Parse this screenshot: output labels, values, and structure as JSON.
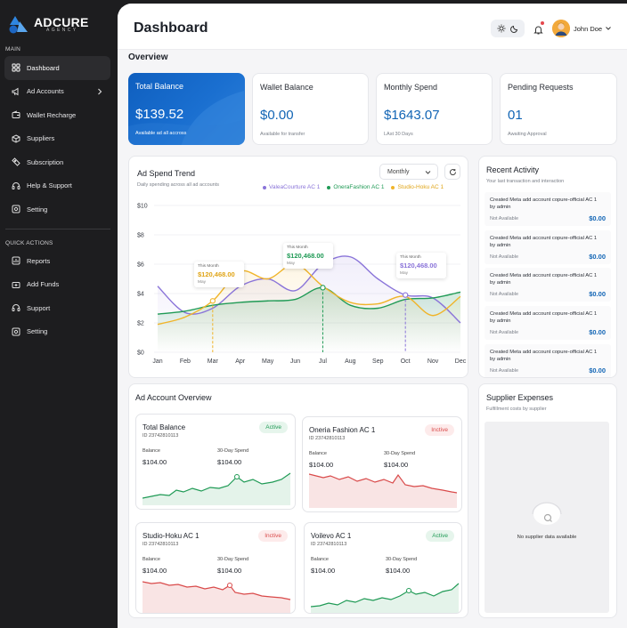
{
  "brand": {
    "name": "ADCURE",
    "tagline": "AGENCY"
  },
  "sidebar": {
    "main_label": "MAIN",
    "items": [
      {
        "label": "Dashboard",
        "icon": "grid-icon",
        "active": true
      },
      {
        "label": "Ad Accounts",
        "icon": "megaphone-icon",
        "has_chevron": true
      },
      {
        "label": "Wallet Recharge",
        "icon": "wallet-icon"
      },
      {
        "label": "Suppliers",
        "icon": "box-icon"
      },
      {
        "label": "Subscription",
        "icon": "ticket-icon"
      },
      {
        "label": "Help & Support",
        "icon": "headset-icon"
      },
      {
        "label": "Setting",
        "icon": "settings-icon"
      }
    ],
    "quick_label": "QUICK ACTIONS",
    "quick_items": [
      {
        "label": "Reports",
        "icon": "report-icon"
      },
      {
        "label": "Add Funds",
        "icon": "add-funds-icon"
      },
      {
        "label": "Support",
        "icon": "headset-icon"
      },
      {
        "label": "Setting",
        "icon": "settings-icon"
      }
    ]
  },
  "header": {
    "title": "Dashboard",
    "user_name": "John Doe"
  },
  "overview": {
    "title": "Overview",
    "cards": [
      {
        "label": "Total Balance",
        "value": "$139.52",
        "sub": "Available ad all accross",
        "highlight": true
      },
      {
        "label": "Wallet Balance",
        "value": "$0.00",
        "sub": "Available for transfer"
      },
      {
        "label": "Monthly Spend",
        "value": "$1643.07",
        "sub": "LAst 30 Days"
      },
      {
        "label": "Pending Requests",
        "value": "01",
        "sub": "Awaiting Approval"
      }
    ]
  },
  "spend_trend": {
    "title": "Ad Spend Trend",
    "subtitle": "Daily spending across all ad accounts",
    "period": "Monthly",
    "legend": [
      {
        "name": "ValeaCourture AC 1",
        "color": "#8a74d9"
      },
      {
        "name": "OneraFashion AC 1",
        "color": "#1f9a55"
      },
      {
        "name": "Studio-Hoku AC 1",
        "color": "#f0b429"
      }
    ],
    "tooltips": [
      {
        "label": "This Month",
        "value": "$120,468.00",
        "month": "May",
        "color": "#f0b429"
      },
      {
        "label": "This Month",
        "value": "$120,468.00",
        "month": "May",
        "color": "#1f9a55"
      },
      {
        "label": "This Month",
        "value": "$120,468.00",
        "month": "May",
        "color": "#8a74d9"
      }
    ]
  },
  "chart_data": {
    "type": "line",
    "title": "Ad Spend Trend",
    "x": [
      "Jan",
      "Feb",
      "Mar",
      "Apr",
      "May",
      "Jun",
      "Jul",
      "Aug",
      "Sep",
      "Oct",
      "Nov",
      "Dec"
    ],
    "y_ticks": [
      "$0",
      "$2",
      "$4",
      "$6",
      "$8",
      "$10"
    ],
    "ylim": [
      0,
      10
    ],
    "series": [
      {
        "name": "ValeaCourture AC 1",
        "color": "#8a74d9",
        "values": [
          4.5,
          2.7,
          3.0,
          4.5,
          5.0,
          4.2,
          6.0,
          6.5,
          5.0,
          3.9,
          3.7,
          2.0
        ]
      },
      {
        "name": "OneraFashion AC 1",
        "color": "#1f9a55",
        "values": [
          2.6,
          2.8,
          3.2,
          3.4,
          3.5,
          3.6,
          4.4,
          3.2,
          3.0,
          3.6,
          3.7,
          4.1
        ]
      },
      {
        "name": "Studio-Hoku AC 1",
        "color": "#f0b429",
        "values": [
          1.9,
          2.4,
          3.5,
          5.5,
          5.0,
          6.0,
          4.5,
          3.4,
          3.3,
          3.8,
          2.5,
          3.8
        ]
      }
    ],
    "grid": true
  },
  "recent_activity": {
    "title": "Recent Activity",
    "subtitle": "Your last transaction and interaction",
    "items": [
      {
        "title": "Created Meta add account copure-official AC 1 by admin",
        "status": "Not Available",
        "amount": "$0.00"
      },
      {
        "title": "Created Meta add account copure-official AC 1 by admin",
        "status": "Not Available",
        "amount": "$0.00"
      },
      {
        "title": "Created Meta add account copure-official AC 1 by admin",
        "status": "Not Available",
        "amount": "$0.00"
      },
      {
        "title": "Created Meta add account copure-official AC 1 by admin",
        "status": "Not Available",
        "amount": "$0.00"
      },
      {
        "title": "Created Meta add account copure-official AC 1 by admin",
        "status": "Not Available",
        "amount": "$0.00"
      }
    ]
  },
  "ad_accounts": {
    "title": "Ad Account Overview",
    "balance_label": "Balance",
    "spend_label": "30-Day Spend",
    "items": [
      {
        "name": "Total Balance",
        "id": "ID 23742810113",
        "status": "Active",
        "balance": "$104.00",
        "spend": "$104.00",
        "trend_color": "#1f9a55"
      },
      {
        "name": "Oneria Fashion AC 1",
        "id": "ID 23742810113",
        "status": "Inctive",
        "balance": "$104.00",
        "spend": "$104.00",
        "trend_color": "#d94a4a"
      },
      {
        "name": "Studio-Hoku AC 1",
        "id": "ID 23742810113",
        "status": "Inctive",
        "balance": "$104.00",
        "spend": "$104.00",
        "trend_color": "#d94a4a"
      },
      {
        "name": "Voilevo AC 1",
        "id": "ID 23742810113",
        "status": "Active",
        "balance": "$104.00",
        "spend": "$104.00",
        "trend_color": "#1f9a55"
      }
    ]
  },
  "supplier_expenses": {
    "title": "Supplier Expenses",
    "subtitle": "Fulfillment costs by supplier",
    "empty_text": "No supplier data available"
  }
}
